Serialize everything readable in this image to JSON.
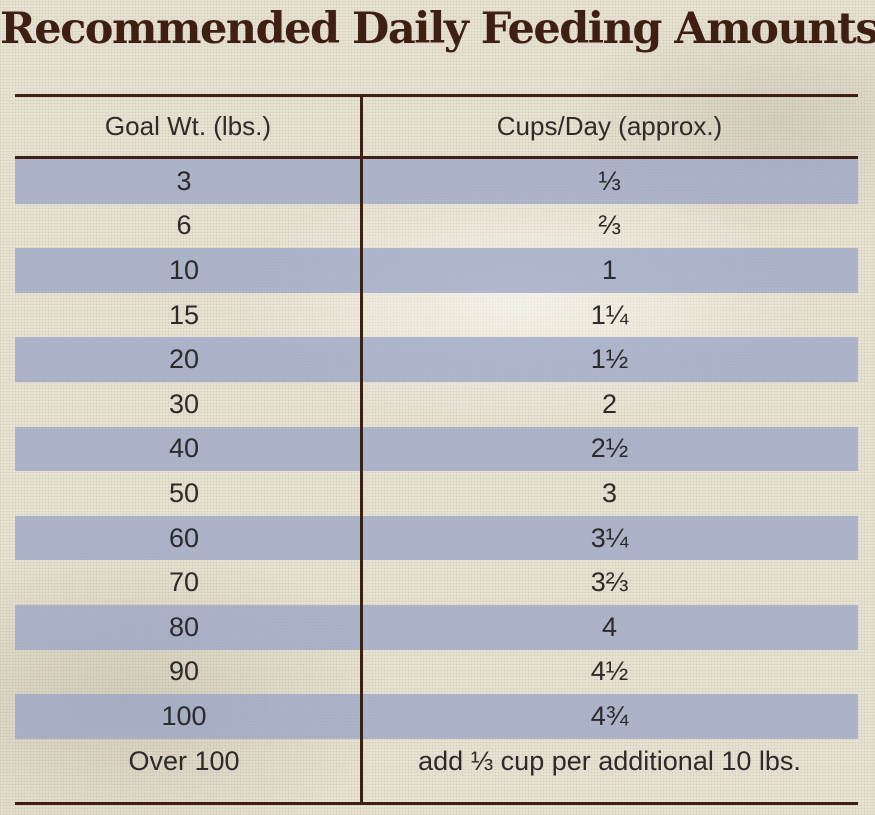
{
  "title": "Recommended Daily Feeding Amounts:",
  "colors": {
    "title": "#3f1f12",
    "rule": "#3f1f12",
    "stripe": "#96a2c6",
    "background": "#e8e2d2"
  },
  "table": {
    "headers": [
      "Goal Wt. (lbs.)",
      "Cups/Day (approx.)"
    ],
    "rows": [
      {
        "weight": "3",
        "cups": "⅓"
      },
      {
        "weight": "6",
        "cups": "⅔"
      },
      {
        "weight": "10",
        "cups": "1"
      },
      {
        "weight": "15",
        "cups": "1¼"
      },
      {
        "weight": "20",
        "cups": "1½"
      },
      {
        "weight": "30",
        "cups": "2"
      },
      {
        "weight": "40",
        "cups": "2½"
      },
      {
        "weight": "50",
        "cups": "3"
      },
      {
        "weight": "60",
        "cups": "3¼"
      },
      {
        "weight": "70",
        "cups": "3⅔"
      },
      {
        "weight": "80",
        "cups": "4"
      },
      {
        "weight": "90",
        "cups": "4½"
      },
      {
        "weight": "100",
        "cups": "4¾"
      },
      {
        "weight": "Over 100",
        "cups": "add ⅓ cup per additional 10 lbs."
      }
    ]
  }
}
